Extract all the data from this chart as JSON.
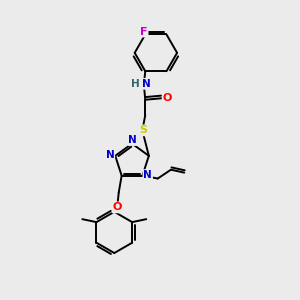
{
  "background_color": "#ebebeb",
  "atom_colors": {
    "C": "#000000",
    "N": "#0000cc",
    "O": "#ff0000",
    "S": "#cccc00",
    "F": "#cc00cc",
    "H": "#336666"
  },
  "bond_color": "#000000",
  "bond_width": 1.4,
  "figsize": [
    3.0,
    3.0
  ],
  "dpi": 100
}
